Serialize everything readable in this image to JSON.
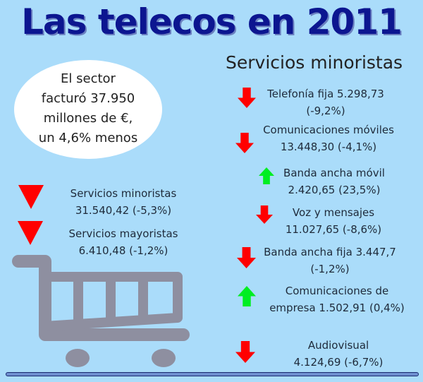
{
  "title": "Las telecos en 2011",
  "subtitle": "Servicios minoristas",
  "summary": [
    "El sector",
    "facturó 37.950",
    "millones de €,",
    "un 4,6% menos"
  ],
  "left_items": [
    {
      "label": "Servicios minoristas",
      "value": "31.540,42 (-5,3%)",
      "trend": "down"
    },
    {
      "label": "Servicios mayoristas",
      "value": "6.410,48 (-1,2%)",
      "trend": "down"
    }
  ],
  "right_items": [
    {
      "line1": "Telefonía fija 5.298,73",
      "line2": "(-9,2%)",
      "trend": "down"
    },
    {
      "line1": "Comunicaciones móviles",
      "line2": "13.448,30 (-4,1%)",
      "trend": "down"
    },
    {
      "line1": "Banda ancha móvil",
      "line2": "2.420,65 (23,5%)",
      "trend": "up"
    },
    {
      "line1": "Voz y mensajes",
      "line2": "11.027,65 (-8,6%)",
      "trend": "down"
    },
    {
      "line1": "Banda ancha fija 3.447,7",
      "line2": "(-1,2%)",
      "trend": "down"
    },
    {
      "line1": "Comunicaciones de",
      "line2": "empresa 1.502,91 (0,4%)",
      "trend": "up"
    },
    {
      "line1": "Audiovisual",
      "line2": "4.124,69 (-6,7%)",
      "trend": "down"
    }
  ],
  "colors": {
    "down": "#ff0000",
    "up": "#00ee22",
    "title": "#0c1690",
    "cart": "#8e8fa0",
    "background": "#aadcfa"
  },
  "icons": [
    "shopping-cart-icon",
    "arrow-down-icon",
    "arrow-up-icon",
    "triangle-down-icon"
  ]
}
